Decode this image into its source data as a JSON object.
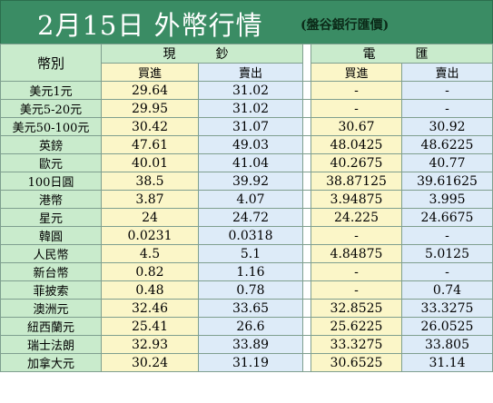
{
  "header": {
    "title": "2月15日 外幣行情",
    "subtitle": "(盤谷銀行匯價)"
  },
  "table": {
    "col_currency": "幣別",
    "group_cash": "現鈔",
    "group_remit": "電匯",
    "buy": "買進",
    "sell": "賣出",
    "rows": [
      {
        "name": "美元1元",
        "cash_buy": "29.64",
        "cash_sell": "31.02",
        "remit_buy": "-",
        "remit_sell": "-"
      },
      {
        "name": "美元5-20元",
        "cash_buy": "29.95",
        "cash_sell": "31.02",
        "remit_buy": "-",
        "remit_sell": "-"
      },
      {
        "name": "美元50-100元",
        "cash_buy": "30.42",
        "cash_sell": "31.07",
        "remit_buy": "30.67",
        "remit_sell": "30.92"
      },
      {
        "name": "英鎊",
        "cash_buy": "47.61",
        "cash_sell": "49.03",
        "remit_buy": "48.0425",
        "remit_sell": "48.6225"
      },
      {
        "name": "歐元",
        "cash_buy": "40.01",
        "cash_sell": "41.04",
        "remit_buy": "40.2675",
        "remit_sell": "40.77"
      },
      {
        "name": "100日圓",
        "cash_buy": "38.5",
        "cash_sell": "39.92",
        "remit_buy": "38.87125",
        "remit_sell": "39.61625"
      },
      {
        "name": "港幣",
        "cash_buy": "3.87",
        "cash_sell": "4.07",
        "remit_buy": "3.94875",
        "remit_sell": "3.995"
      },
      {
        "name": "星元",
        "cash_buy": "24",
        "cash_sell": "24.72",
        "remit_buy": "24.225",
        "remit_sell": "24.6675"
      },
      {
        "name": "韓圓",
        "cash_buy": "0.0231",
        "cash_sell": "0.0318",
        "remit_buy": "-",
        "remit_sell": "-"
      },
      {
        "name": "人民幣",
        "cash_buy": "4.5",
        "cash_sell": "5.1",
        "remit_buy": "4.84875",
        "remit_sell": "5.0125"
      },
      {
        "name": "新台幣",
        "cash_buy": "0.82",
        "cash_sell": "1.16",
        "remit_buy": "-",
        "remit_sell": "-"
      },
      {
        "name": "菲披索",
        "cash_buy": "0.48",
        "cash_sell": "0.78",
        "remit_buy": "-",
        "remit_sell": "0.74"
      },
      {
        "name": "澳洲元",
        "cash_buy": "32.46",
        "cash_sell": "33.65",
        "remit_buy": "32.8525",
        "remit_sell": "33.3275"
      },
      {
        "name": "紐西蘭元",
        "cash_buy": "25.41",
        "cash_sell": "26.6",
        "remit_buy": "25.6225",
        "remit_sell": "26.0525"
      },
      {
        "name": "瑞士法朗",
        "cash_buy": "32.93",
        "cash_sell": "33.89",
        "remit_buy": "33.3275",
        "remit_sell": "33.805"
      },
      {
        "name": "加拿大元",
        "cash_buy": "30.24",
        "cash_sell": "31.19",
        "remit_buy": "30.6525",
        "remit_sell": "31.14"
      }
    ]
  }
}
